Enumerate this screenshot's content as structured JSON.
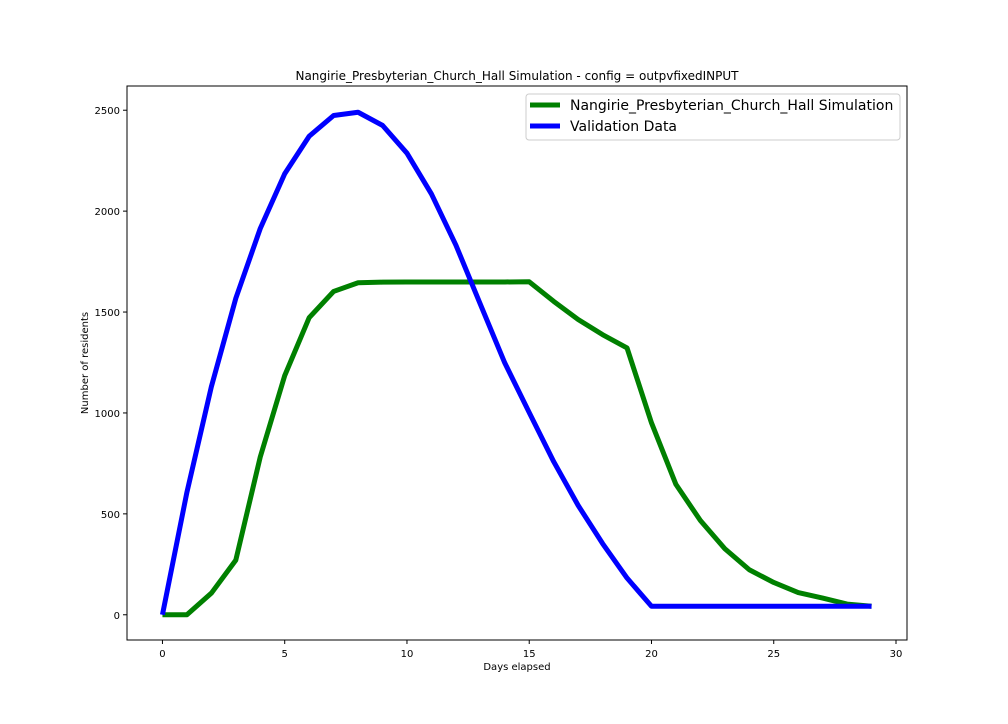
{
  "chart_data": {
    "type": "line",
    "title": "Nangirie_Presbyterian_Church_Hall Simulation - config = outpvfixedINPUT",
    "xlabel": "Days elapsed",
    "ylabel": "Number of residents",
    "xlim": [
      -1.45,
      30.45
    ],
    "ylim": [
      -125,
      2620
    ],
    "xticks": [
      0,
      5,
      10,
      15,
      20,
      25,
      30
    ],
    "yticks": [
      0,
      500,
      1000,
      1500,
      2000,
      2500
    ],
    "grid": false,
    "legend_position": "top-right",
    "series": [
      {
        "name": "Nangirie_Presbyterian_Church_Hall Simulation",
        "color": "#008000",
        "x": [
          0,
          1,
          2,
          3,
          4,
          5,
          6,
          7,
          8,
          9,
          10,
          11,
          12,
          13,
          14,
          15,
          16,
          17,
          18,
          19,
          20,
          21,
          22,
          23,
          24,
          25,
          26,
          27,
          28,
          29
        ],
        "y": [
          0,
          0,
          107,
          271,
          782,
          1185,
          1472,
          1602,
          1645,
          1648,
          1649,
          1649,
          1649,
          1649,
          1649,
          1650,
          1553,
          1463,
          1388,
          1322,
          951,
          646,
          467,
          327,
          223,
          160,
          110,
          83,
          53,
          42
        ]
      },
      {
        "name": "Validation Data",
        "color": "#0000ff",
        "x": [
          0,
          1,
          2,
          3,
          4,
          5,
          6,
          7,
          8,
          9,
          10,
          11,
          12,
          13,
          14,
          15,
          16,
          17,
          18,
          19,
          20,
          21,
          22,
          23,
          24,
          25,
          26,
          27,
          28,
          29
        ],
        "y": [
          0,
          607,
          1130,
          1568,
          1914,
          2185,
          2371,
          2474,
          2490,
          2425,
          2287,
          2085,
          1832,
          1539,
          1248,
          1002,
          759,
          542,
          353,
          182,
          42,
          42,
          42,
          42,
          42,
          42,
          42,
          42,
          42,
          42
        ]
      }
    ]
  }
}
